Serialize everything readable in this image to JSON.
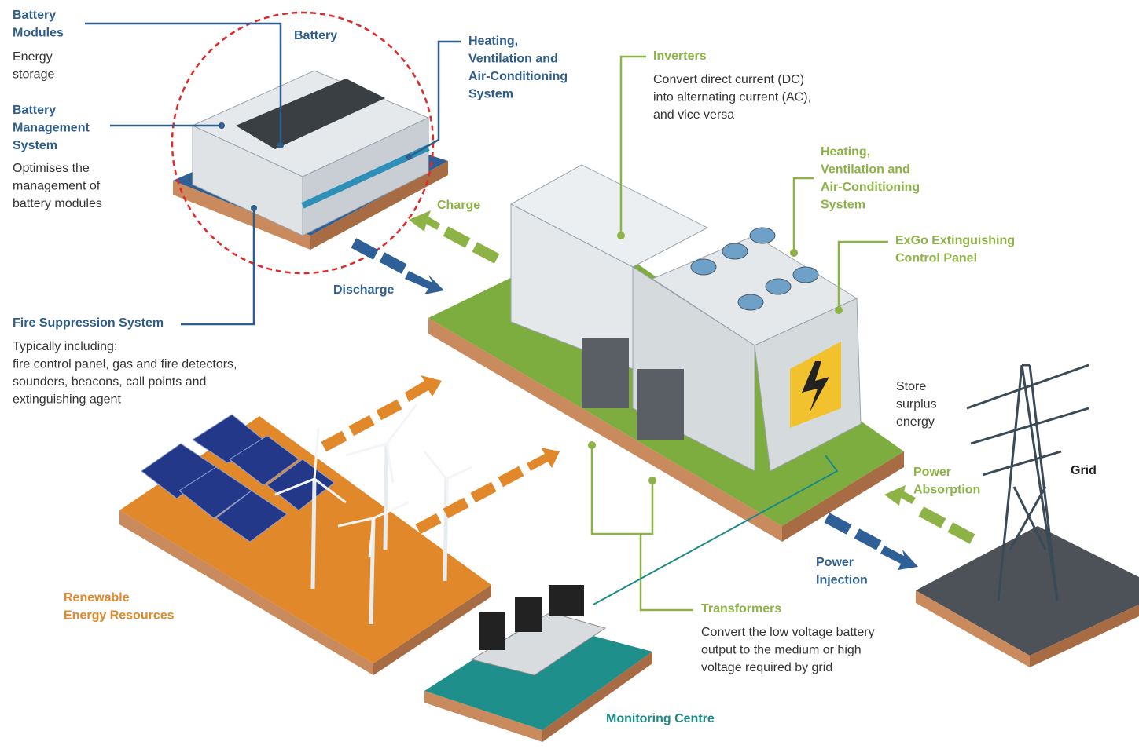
{
  "callouts": [
    {
      "title": [
        "Battery",
        "Modules"
      ],
      "text": [
        "Energy",
        "storage"
      ]
    },
    {
      "title": [
        "Battery",
        "Management",
        "System"
      ],
      "text": [
        "Optimises the",
        "management of",
        "battery modules"
      ]
    },
    {
      "title": [
        "Heating,",
        "Ventilation and",
        "Air-Conditioning",
        "System"
      ],
      "text": []
    },
    {
      "title": [
        "Fire Suppression System"
      ],
      "text": [
        "Typically including:",
        "fire control panel, gas and fire detectors,",
        "sounders, beacons, call points and",
        "extinguishing agent"
      ]
    },
    {
      "title": [
        "Inverters"
      ],
      "text": [
        "Convert direct current (DC)",
        "into alternating current (AC),",
        "and vice versa"
      ]
    },
    {
      "title": [
        "Heating,",
        "Ventilation and",
        "Air-Conditioning",
        "System"
      ],
      "text": []
    },
    {
      "title": [
        "ExGo Extinguishing",
        "Control Panel"
      ],
      "text": []
    },
    {
      "title": [
        "Transformers"
      ],
      "text": [
        "Convert the low voltage battery",
        "output to the medium or high",
        "voltage required by grid"
      ]
    }
  ],
  "scene_labels": {
    "battery": [
      "Battery"
    ],
    "charge": [
      "Charge"
    ],
    "discharge": [
      "Discharge"
    ],
    "store": [
      "Store",
      "surplus",
      "energy"
    ],
    "absorption": [
      "Power",
      "Absorption"
    ],
    "injection": [
      "Power",
      "Injection"
    ],
    "grid": [
      "Grid"
    ],
    "renewable": [
      "Renewable",
      "Energy Resources"
    ],
    "monitoring": [
      "Monitoring Centre"
    ]
  }
}
